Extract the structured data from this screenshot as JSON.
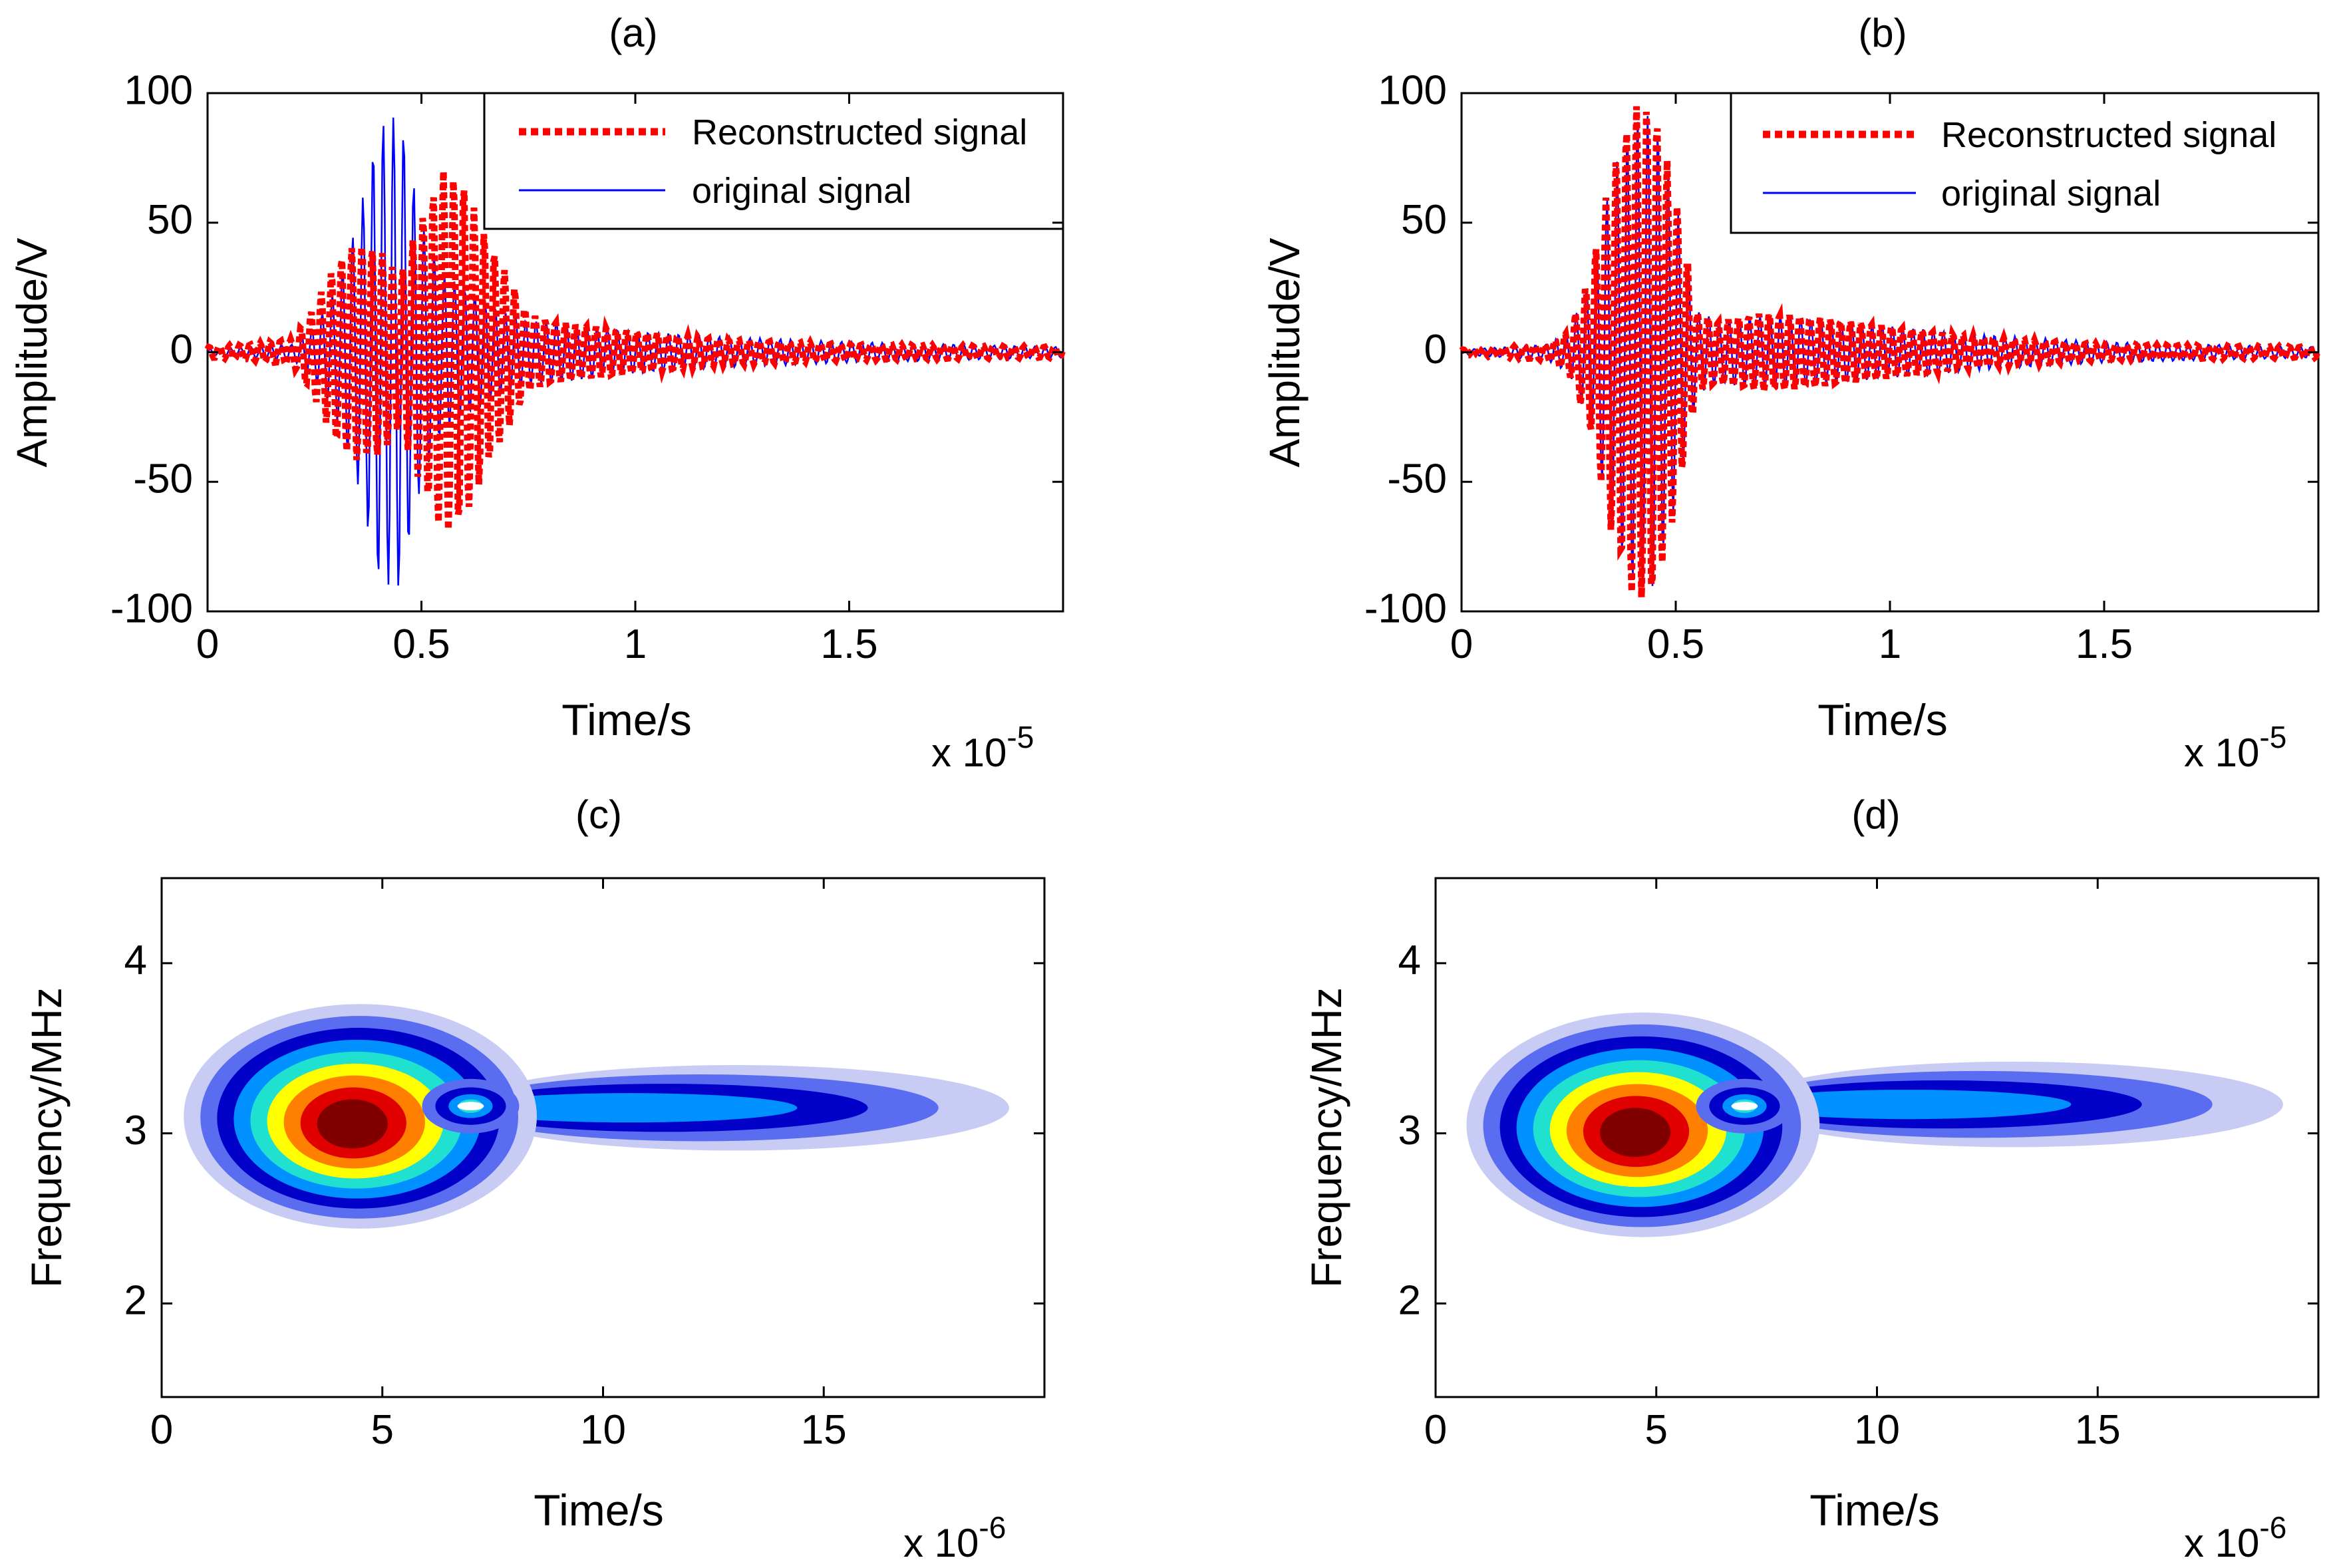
{
  "figure": {
    "panels": [
      "(a)",
      "(b)",
      "(c)",
      "(d)"
    ]
  },
  "chart_data": [
    {
      "panel": "(a)",
      "type": "line",
      "title": "(a)",
      "xlabel": "Time/s",
      "ylabel": "Amplitude/V",
      "x_multiplier": "x 10",
      "x_multiplier_exp": "-5",
      "xlim": [
        0,
        2.0
      ],
      "ylim": [
        -100,
        100
      ],
      "xticks": [
        0,
        0.5,
        1,
        1.5
      ],
      "xticklabels": [
        "0",
        "0.5",
        "1",
        "1.5"
      ],
      "yticks": [
        100,
        50,
        0,
        -50,
        -100
      ],
      "yticklabels": [
        "100",
        "50",
        "0",
        "-50",
        "-100"
      ],
      "legend": "top-right",
      "series": [
        {
          "name": "Reconstructed signal",
          "color": "#ff0000",
          "style": "dotted",
          "x": [
            0,
            0.1,
            0.2,
            0.25,
            0.3,
            0.35,
            0.4,
            0.45,
            0.5,
            0.55,
            0.6,
            0.65,
            0.7,
            0.75,
            0.8,
            0.9,
            1.0,
            1.2,
            1.5,
            2.0
          ],
          "envelope": [
            2,
            3,
            5,
            18,
            35,
            42,
            40,
            30,
            52,
            70,
            65,
            45,
            30,
            15,
            12,
            10,
            8,
            5,
            3,
            2
          ]
        },
        {
          "name": "original signal",
          "color": "#0000ff",
          "style": "solid",
          "x": [
            0,
            0.1,
            0.2,
            0.25,
            0.3,
            0.35,
            0.4,
            0.45,
            0.5,
            0.55,
            0.6,
            0.65,
            0.7,
            0.75,
            0.8,
            0.9,
            1.0,
            1.2,
            1.5,
            2.0
          ],
          "envelope": [
            1,
            2,
            3,
            10,
            25,
            50,
            88,
            92,
            50,
            30,
            25,
            20,
            15,
            12,
            12,
            10,
            8,
            6,
            4,
            2
          ]
        }
      ]
    },
    {
      "panel": "(b)",
      "type": "line",
      "title": "(b)",
      "xlabel": "Time/s",
      "ylabel": "Amplitude/V",
      "x_multiplier": "x 10",
      "x_multiplier_exp": "-5",
      "xlim": [
        0,
        2.0
      ],
      "ylim": [
        -100,
        100
      ],
      "xticks": [
        0,
        0.5,
        1,
        1.5
      ],
      "xticklabels": [
        "0",
        "0.5",
        "1",
        "1.5"
      ],
      "yticks": [
        100,
        50,
        0,
        -50,
        -100
      ],
      "yticklabels": [
        "100",
        "50",
        "0",
        "-50",
        "-100"
      ],
      "legend": "top-right",
      "series": [
        {
          "name": "Reconstructed signal",
          "color": "#ff0000",
          "style": "dotted",
          "x": [
            0,
            0.1,
            0.2,
            0.25,
            0.3,
            0.35,
            0.4,
            0.45,
            0.5,
            0.55,
            0.6,
            0.7,
            0.8,
            1.0,
            1.2,
            1.5,
            2.0
          ],
          "envelope": [
            1,
            2,
            3,
            8,
            30,
            70,
            95,
            95,
            60,
            15,
            12,
            15,
            14,
            10,
            6,
            3,
            2
          ]
        },
        {
          "name": "original signal",
          "color": "#0000ff",
          "style": "solid",
          "x": [
            0,
            0.1,
            0.2,
            0.25,
            0.3,
            0.35,
            0.4,
            0.45,
            0.5,
            0.55,
            0.6,
            0.7,
            0.8,
            1.0,
            1.2,
            1.5,
            2.0
          ],
          "envelope": [
            1,
            2,
            3,
            8,
            28,
            68,
            90,
            92,
            58,
            16,
            12,
            14,
            13,
            10,
            7,
            4,
            2
          ]
        }
      ]
    },
    {
      "panel": "(c)",
      "type": "heatmap",
      "title": "(c)",
      "xlabel": "Time/s",
      "ylabel": "Frequency/MHz",
      "x_multiplier": "x 10",
      "x_multiplier_exp": "-6",
      "xlim": [
        0,
        20
      ],
      "ylim": [
        1.45,
        4.5
      ],
      "xticks": [
        0,
        5,
        10,
        15
      ],
      "xticklabels": [
        "0",
        "5",
        "10",
        "15"
      ],
      "yticks": [
        4,
        3,
        2
      ],
      "yticklabels": [
        "4",
        "3",
        "2"
      ],
      "colormap": [
        "#ffffff",
        "#c8ccf4",
        "#5a6cf0",
        "#0000c8",
        "#0090ff",
        "#20e0d0",
        "#ffff00",
        "#ff8000",
        "#e00000",
        "#800000"
      ],
      "peaks": [
        {
          "t": 4.3,
          "f": 3.05,
          "strength": 1.0
        },
        {
          "t": 7.0,
          "f": 3.16,
          "strength": 0.5
        },
        {
          "t": 12.0,
          "f": 3.15,
          "strength": 0.3
        }
      ]
    },
    {
      "panel": "(d)",
      "type": "heatmap",
      "title": "(d)",
      "xlabel": "Time/s",
      "ylabel": "Frequency/MHz",
      "x_multiplier": "x 10",
      "x_multiplier_exp": "-6",
      "xlim": [
        0,
        20
      ],
      "ylim": [
        1.45,
        4.5
      ],
      "xticks": [
        0,
        5,
        10,
        15
      ],
      "xticklabels": [
        "0",
        "5",
        "10",
        "15"
      ],
      "yticks": [
        4,
        3,
        2
      ],
      "yticklabels": [
        "4",
        "3",
        "2"
      ],
      "colormap": [
        "#ffffff",
        "#c8ccf4",
        "#5a6cf0",
        "#0000c8",
        "#0090ff",
        "#20e0d0",
        "#ffff00",
        "#ff8000",
        "#e00000",
        "#800000"
      ],
      "peaks": [
        {
          "t": 4.5,
          "f": 3.0,
          "strength": 1.0
        },
        {
          "t": 7.0,
          "f": 3.16,
          "strength": 0.5
        },
        {
          "t": 12.0,
          "f": 3.17,
          "strength": 0.3
        }
      ]
    }
  ]
}
